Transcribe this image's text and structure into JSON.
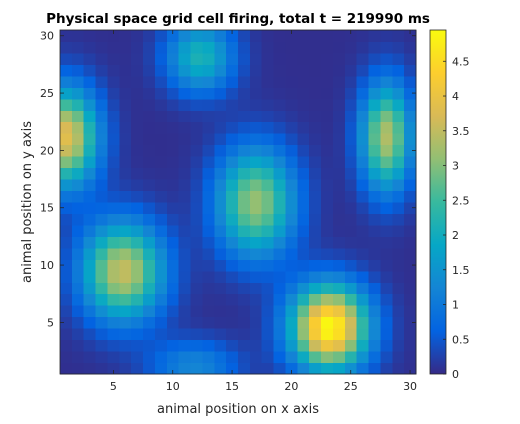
{
  "chart_data": {
    "type": "heatmap",
    "title": "Physical space grid cell firing, total t = 219990 ms",
    "xlabel": "animal position on x axis",
    "ylabel": "animal position on y axis",
    "xlim": [
      0.5,
      30.5
    ],
    "ylim": [
      0.5,
      30.5
    ],
    "xticks": [
      5,
      10,
      15,
      20,
      25,
      30
    ],
    "yticks": [
      5,
      10,
      15,
      20,
      25,
      30
    ],
    "colormap": "parula",
    "clim": [
      0,
      4.95
    ],
    "colorbar_ticks": [
      0,
      0.5,
      1,
      1.5,
      2,
      2.5,
      3,
      3.5,
      4,
      4.5
    ],
    "baseline": 0.05,
    "bumps": [
      {
        "x": 23.2,
        "y": 4.6,
        "amp": 4.9,
        "sx": 2.3,
        "sy": 2.6
      },
      {
        "x": 17.0,
        "y": 15.5,
        "amp": 3.1,
        "sx": 2.3,
        "sy": 3.3
      },
      {
        "x": 5.8,
        "y": 9.5,
        "amp": 3.5,
        "sx": 2.4,
        "sy": 3.0
      },
      {
        "x": 1.0,
        "y": 21.2,
        "amp": 3.8,
        "sx": 1.9,
        "sy": 3.0
      },
      {
        "x": 28.0,
        "y": 21.2,
        "amp": 3.3,
        "sx": 1.5,
        "sy": 3.3
      },
      {
        "x": 12.3,
        "y": 28.2,
        "amp": 2.1,
        "sx": 2.0,
        "sy": 2.2
      },
      {
        "x": 11.8,
        "y": 1.2,
        "amp": 1.2,
        "sx": 2.6,
        "sy": 1.6
      }
    ]
  },
  "colors": {
    "parula": [
      "#352a87",
      "#0363e1",
      "#1485d4",
      "#06a7c6",
      "#38b99e",
      "#92bf73",
      "#d9ba56",
      "#fcce2e",
      "#f9fb0e"
    ]
  }
}
